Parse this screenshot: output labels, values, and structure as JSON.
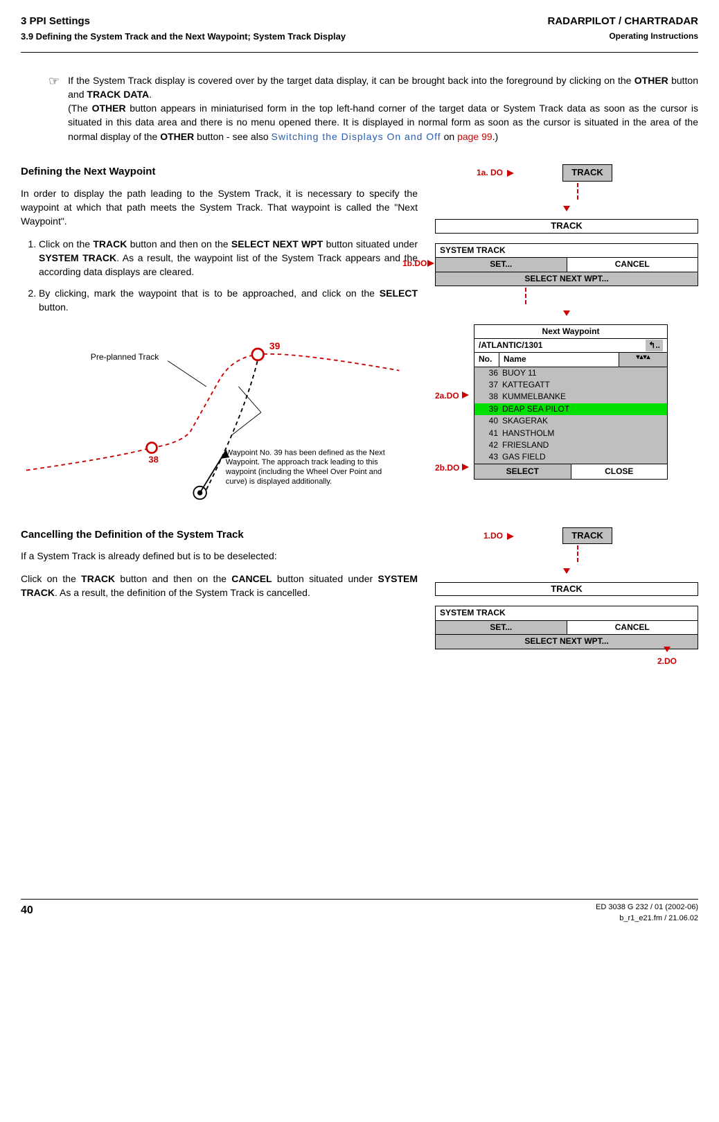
{
  "header": {
    "left1": "3   PPI Settings",
    "left2": "3.9  Defining the System Track and the Next Waypoint; System Track Display",
    "right1": "RADARPILOT / CHARTRADAR",
    "right2": "Operating Instructions"
  },
  "note": {
    "pointer": "☞",
    "t1": "If the System Track display is covered over by the target data display, it can be brought back into the foreground by clicking on the ",
    "b1": "OTHER",
    "t2": " button and ",
    "b2": "TRACK DATA",
    "t3": ".",
    "t4": "(The ",
    "b3": "OTHER",
    "t5": " button appears in miniaturised form in the top left-hand corner of the target data or System Track data as soon as the cursor is situated in this data area and there is no menu opened there. It is displayed in normal form as soon as the cursor is situated in the area of the normal display of the ",
    "b4": "OTHER",
    "t6": " button - see also ",
    "linkblue": "Switching the Displays On and Off",
    "t7": " on ",
    "linkred": "page 99",
    "t8": ".)"
  },
  "sec1": {
    "title": "Defining the Next Waypoint",
    "p1": "In order to display the path leading to the System Track, it is necessary to specify the waypoint at which that path meets the System Track. That waypoint is called the \"Next Waypoint\".",
    "step1a": "Click on the ",
    "step1b1": "TRACK",
    "step1c": " button and then on the ",
    "step1b2": "SELECT NEXT WPT",
    "step1d": " button situated under ",
    "step1b3": "SYSTEM TRACK",
    "step1e": ". As a result, the waypoint list of the System Track appears and the according data displays are cleared.",
    "step2a": "By clicking, mark the waypoint that is to be approached, and click on the ",
    "step2b": "SELECT",
    "step2c": " button."
  },
  "diagram": {
    "preplanned_label": "Pre-planned Track",
    "wp39": "39",
    "wp38": "38",
    "caption": "Waypoint No. 39 has been defined as the Next Waypoint. The approach track leading to this waypoint (including the Wheel Over Point and curve) is displayed additionally.",
    "stroke_red": "#cc0000",
    "stroke_black": "#000000"
  },
  "ui1": {
    "do1a": "1a. DO",
    "track_btn": "TRACK",
    "track_menu": "TRACK",
    "panel_title": "SYSTEM TRACK",
    "set": "SET...",
    "cancel": "CANCEL",
    "selectnext": "SELECT NEXT WPT...",
    "do1b": "1b.DO"
  },
  "wp": {
    "title": "Next Waypoint",
    "path": "/ATLANTIC/1301",
    "up": "↰..",
    "col_no": "No.",
    "col_name": "Name",
    "scroll": "▾▴▾▴",
    "rows": [
      {
        "no": "36",
        "name": "BUOY 11",
        "sel": false
      },
      {
        "no": "37",
        "name": "KATTEGATT",
        "sel": false
      },
      {
        "no": "38",
        "name": "KUMMELBANKE",
        "sel": false
      },
      {
        "no": "39",
        "name": "DEAP SEA PILOT",
        "sel": true
      },
      {
        "no": "40",
        "name": "SKAGERAK",
        "sel": false
      },
      {
        "no": "41",
        "name": "HANSTHOLM",
        "sel": false
      },
      {
        "no": "42",
        "name": "FRIESLAND",
        "sel": false
      },
      {
        "no": "43",
        "name": "GAS FIELD",
        "sel": false
      }
    ],
    "select_btn": "SELECT",
    "close_btn": "CLOSE",
    "do2a": "2a.DO",
    "do2b": "2b.DO"
  },
  "sec2": {
    "title": "Cancelling the Definition of the System Track",
    "p1": "If a System Track is already defined but is to be deselected:",
    "p2a": "Click on the ",
    "p2b1": "TRACK",
    "p2c": " button and then on the ",
    "p2b2": "CANCEL",
    "p2d": " button situated under ",
    "p2b3": "SYSTEM TRACK",
    "p2e": ". As a result, the definition of the System Track is cancelled."
  },
  "ui2": {
    "do1": "1.DO",
    "track_btn": "TRACK",
    "track_menu": "TRACK",
    "panel_title": "SYSTEM TRACK",
    "set": "SET...",
    "cancel": "CANCEL",
    "selectnext": "SELECT NEXT WPT...",
    "do2": "2.DO"
  },
  "footer": {
    "pagenum": "40",
    "doc1": "ED 3038 G 232 / 01 (2002-06)",
    "doc2": "b_r1_e21.fm / 21.06.02"
  }
}
